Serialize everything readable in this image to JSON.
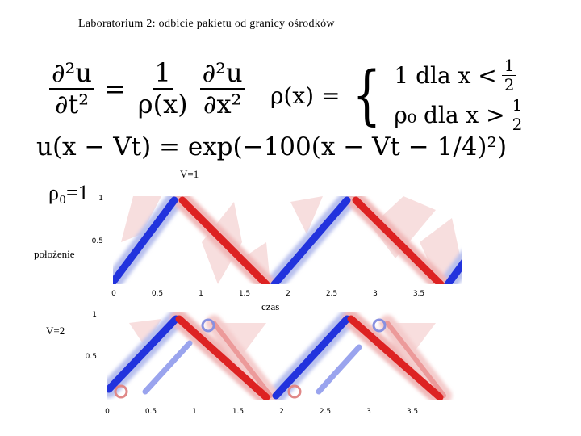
{
  "title": "Laboratorium 2: odbicie pakietu od granicy ośrodków",
  "equations": {
    "wave": {
      "lhs_num": "∂²u",
      "lhs_den": "∂t²",
      "eq": "=",
      "coef_num": "1",
      "coef_den": "ρ(x)",
      "rhs_num": "∂²u",
      "rhs_den": "∂x²"
    },
    "rho": {
      "lhs": "ρ(x) =",
      "cases": [
        {
          "text": "1 dla x <",
          "num": "1",
          "den": "2"
        },
        {
          "text": "ρ₀ dla x >",
          "num": "1",
          "den": "2"
        }
      ]
    },
    "pulse": "u(x − Vt) = exp(−100(x − Vt − 1/4)²)"
  },
  "rho0_label": "ρ₀=1",
  "plots": [
    {
      "label": "V=1",
      "y_label": "położenie",
      "x_label": "czas",
      "yticks": [
        "1",
        "0.5"
      ],
      "xticks": [
        "0",
        "0.5",
        "1",
        "1.5",
        "2",
        "2.5",
        "3",
        "3.5"
      ]
    },
    {
      "label": "V=2",
      "yticks": [
        "1",
        "0.5"
      ],
      "xticks": [
        "0",
        "0.5",
        "1",
        "1.5",
        "2",
        "2.5",
        "3",
        "3.5"
      ]
    }
  ]
}
